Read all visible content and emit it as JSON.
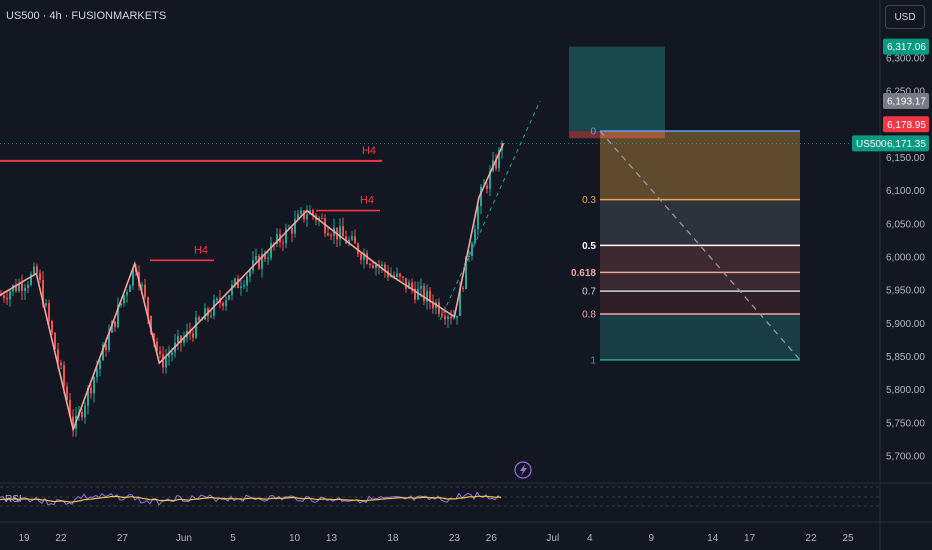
{
  "header": {
    "symbol_title": "US500 · 4h · FUSIONMARKETS",
    "currency": "USD"
  },
  "colors": {
    "background": "#131722",
    "up": "#26a69a",
    "down": "#ef5350",
    "zigzag": "#f7a5a1",
    "resistance": "#f23645",
    "rsi": "#9c6fe0",
    "rsi_ma": "#e8c547"
  },
  "price_tags": {
    "target": {
      "text": "6,317.06",
      "color": "#089981"
    },
    "high": {
      "text": "6,193.17",
      "color": "#787b86"
    },
    "stop": {
      "text": "6,178.95",
      "color": "#f23645"
    },
    "last_symbol": {
      "text": "US500",
      "color": "#089981"
    },
    "last_price": {
      "text": "6,171.35",
      "color": "#089981"
    }
  },
  "chart_data": {
    "type": "candlestick",
    "symbol": "US500",
    "interval": "4h",
    "y_axis": {
      "range": [
        5660,
        6345
      ],
      "ticks": [
        6300,
        6250,
        6200,
        6150,
        6100,
        6050,
        6000,
        5950,
        5900,
        5850,
        5800,
        5750,
        5700
      ],
      "tick_labels": [
        "6,300.00",
        "6,250.00",
        "6,200.00",
        "6,150.00",
        "6,100.00",
        "6,050.00",
        "6,000.00",
        "5,950.00",
        "5,900.00",
        "5,850.00",
        "5,800.00",
        "5,750.00",
        "5,700.00"
      ]
    },
    "x_axis": {
      "tick_labels": [
        "19",
        "22",
        "27",
        "Jun",
        "5",
        "10",
        "13",
        "18",
        "23",
        "26",
        "Jul",
        "4",
        "9",
        "14",
        "17",
        "22",
        "25"
      ],
      "tick_dates": [
        "2025-05-19",
        "2025-05-22",
        "2025-05-27",
        "2025-06-01",
        "2025-06-05",
        "2025-06-10",
        "2025-06-13",
        "2025-06-18",
        "2025-06-23",
        "2025-06-26",
        "2025-07-01",
        "2025-07-04",
        "2025-07-09",
        "2025-07-14",
        "2025-07-17",
        "2025-07-22",
        "2025-07-25"
      ]
    },
    "swing_path": [
      {
        "date": "2025-05-15",
        "price": 5920
      },
      {
        "date": "2025-05-20",
        "price": 5975
      },
      {
        "date": "2025-05-23",
        "price": 5740
      },
      {
        "date": "2025-05-28",
        "price": 5990
      },
      {
        "date": "2025-05-30",
        "price": 5840
      },
      {
        "date": "2025-06-11",
        "price": 6070
      },
      {
        "date": "2025-06-18",
        "price": 5970
      },
      {
        "date": "2025-06-23",
        "price": 5910
      },
      {
        "date": "2025-06-25",
        "price": 6090
      },
      {
        "date": "2025-06-27",
        "price": 6171.35
      }
    ],
    "last_price": 6171.35,
    "resistance_levels": [
      {
        "label": "H4",
        "price": 6145
      },
      {
        "label": "H4",
        "price": 6070
      },
      {
        "label": "H4",
        "price": 5995
      }
    ],
    "fibonacci": {
      "start_price": 6190,
      "end_price": 5845,
      "levels": [
        {
          "label": "0",
          "ratio": 0,
          "color": "#5b9cf6"
        },
        {
          "label": "0.3",
          "ratio": 0.3,
          "color": "#f0a843"
        },
        {
          "label": "0.5",
          "ratio": 0.5,
          "color": "#ffffff"
        },
        {
          "label": "0.618",
          "ratio": 0.618,
          "color": "#f7a5a1"
        },
        {
          "label": "0.7",
          "ratio": 0.7,
          "color": "#d1d4dc"
        },
        {
          "label": "0.8",
          "ratio": 0.8,
          "color": "#f7a5a1"
        },
        {
          "label": "1",
          "ratio": 1,
          "color": "#26a69a"
        }
      ]
    },
    "position": {
      "entry": 6190,
      "stop": 6178.95,
      "target": 6317.06
    },
    "rsi": {
      "label": "RSI"
    }
  }
}
